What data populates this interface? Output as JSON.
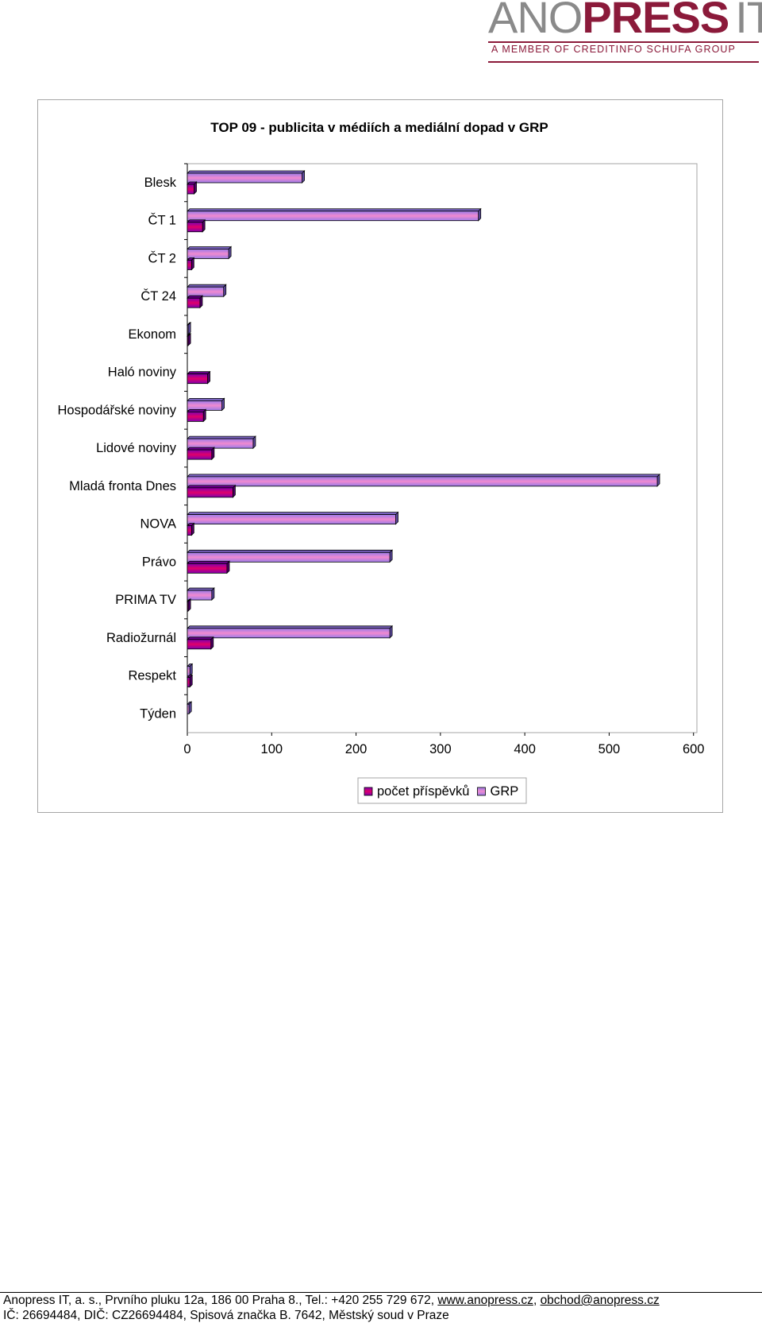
{
  "logo": {
    "ano": "ANO",
    "press": "PRESS",
    "it": "IT",
    "tagline": "A MEMBER OF CREDITINFO SCHUFA GROUP"
  },
  "chart_data": {
    "type": "bar",
    "orientation": "horizontal",
    "title": "TOP 09 - publicita v médiích a mediální dopad v GRP",
    "categories": [
      "Blesk",
      "ČT 1",
      "ČT 2",
      "ČT 24",
      "Ekonom",
      "Haló noviny",
      "Hospodářské noviny",
      "Lidové noviny",
      "Mladá fronta Dnes",
      "NOVA",
      "Právo",
      "PRIMA TV",
      "Radiožurnál",
      "Respekt",
      "Týden"
    ],
    "series": [
      {
        "name": "počet příspěvků",
        "color": "#c0005a",
        "values": [
          8,
          18,
          5,
          15,
          1,
          24,
          19,
          29,
          54,
          5,
          47,
          1,
          28,
          3,
          0
        ]
      },
      {
        "name": "GRP",
        "color": "#a889d8",
        "values": [
          136,
          345,
          49,
          43,
          1,
          0,
          41,
          78,
          557,
          247,
          240,
          29,
          240,
          3,
          2
        ]
      }
    ],
    "xticks": [
      "0",
      "100",
      "200",
      "300",
      "400",
      "500",
      "600"
    ],
    "xlim": [
      0,
      600
    ],
    "grid": false,
    "legend": "bottom"
  },
  "footer": {
    "line1_prefix": "Anopress IT, a. s., Prvního pluku 12a, 186 00 Praha 8., Tel.: +420 255 729 672, ",
    "web": "www.anopress.cz",
    "sep": ", ",
    "email": "obchod@anopress.cz",
    "line2": "IČ: 26694484, DIČ: CZ26694484, Spisová značka B. 7642, Městský soud v Praze"
  }
}
